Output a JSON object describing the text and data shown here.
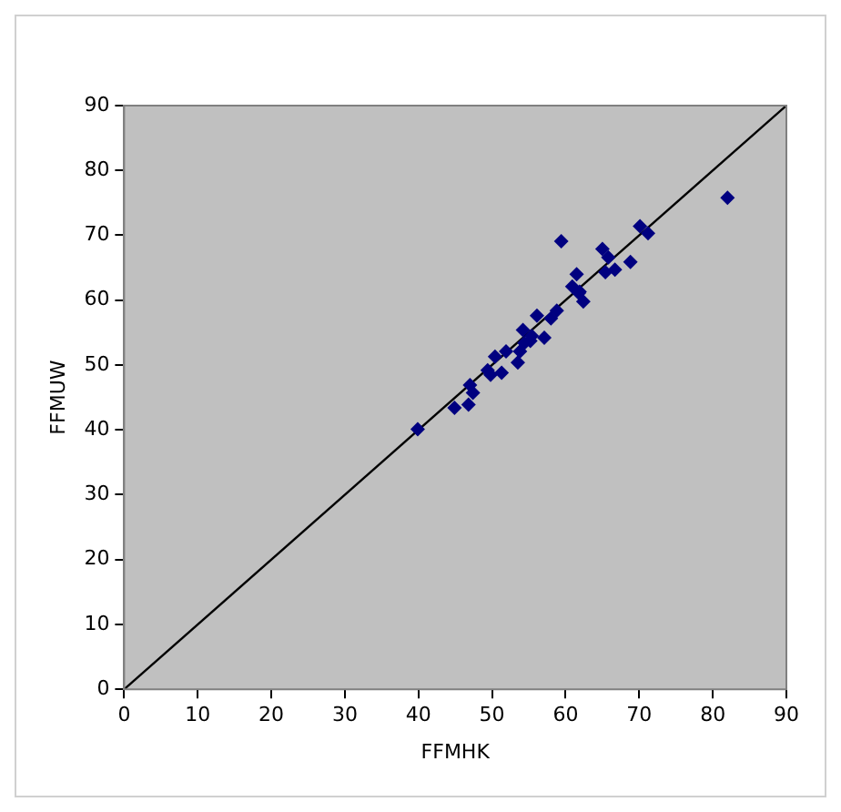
{
  "chart_data": {
    "type": "scatter",
    "xlabel": "FFMHK",
    "ylabel": "FFMUW",
    "xlim": [
      0,
      90
    ],
    "ylim": [
      0,
      90
    ],
    "xticks": [
      0,
      10,
      20,
      30,
      40,
      50,
      60,
      70,
      80,
      90
    ],
    "yticks": [
      0,
      10,
      20,
      30,
      40,
      50,
      60,
      70,
      80,
      90
    ],
    "legend": false,
    "marker": "diamond",
    "series": [
      {
        "color": "#000080",
        "x": [
          39.9,
          44.9,
          46.8,
          47.0,
          47.4,
          49.4,
          49.8,
          50.4,
          51.3,
          51.9,
          53.5,
          53.8,
          54.2,
          54.4,
          55.4,
          56.1,
          57.1,
          58.0,
          58.8,
          59.4,
          60.9,
          61.5,
          61.9,
          62.4,
          65.0,
          65.4,
          65.8,
          66.7,
          68.8,
          70.1,
          71.2,
          82.0,
          55.2,
          61.8
        ],
        "values": [
          40.1,
          43.4,
          43.9,
          46.9,
          45.7,
          49.2,
          48.5,
          51.3,
          48.8,
          52.1,
          50.4,
          52.1,
          55.4,
          53.4,
          54.5,
          57.6,
          54.2,
          57.2,
          58.4,
          69.1,
          62.1,
          64.0,
          61.3,
          59.8,
          67.9,
          64.3,
          66.6,
          64.7,
          65.9,
          71.4,
          70.3,
          75.8,
          53.7,
          61.1
        ]
      },
      {
        "type": "line",
        "color": "#000000",
        "marker": "none",
        "x": [
          0,
          90
        ],
        "values": [
          0,
          90
        ]
      }
    ]
  }
}
